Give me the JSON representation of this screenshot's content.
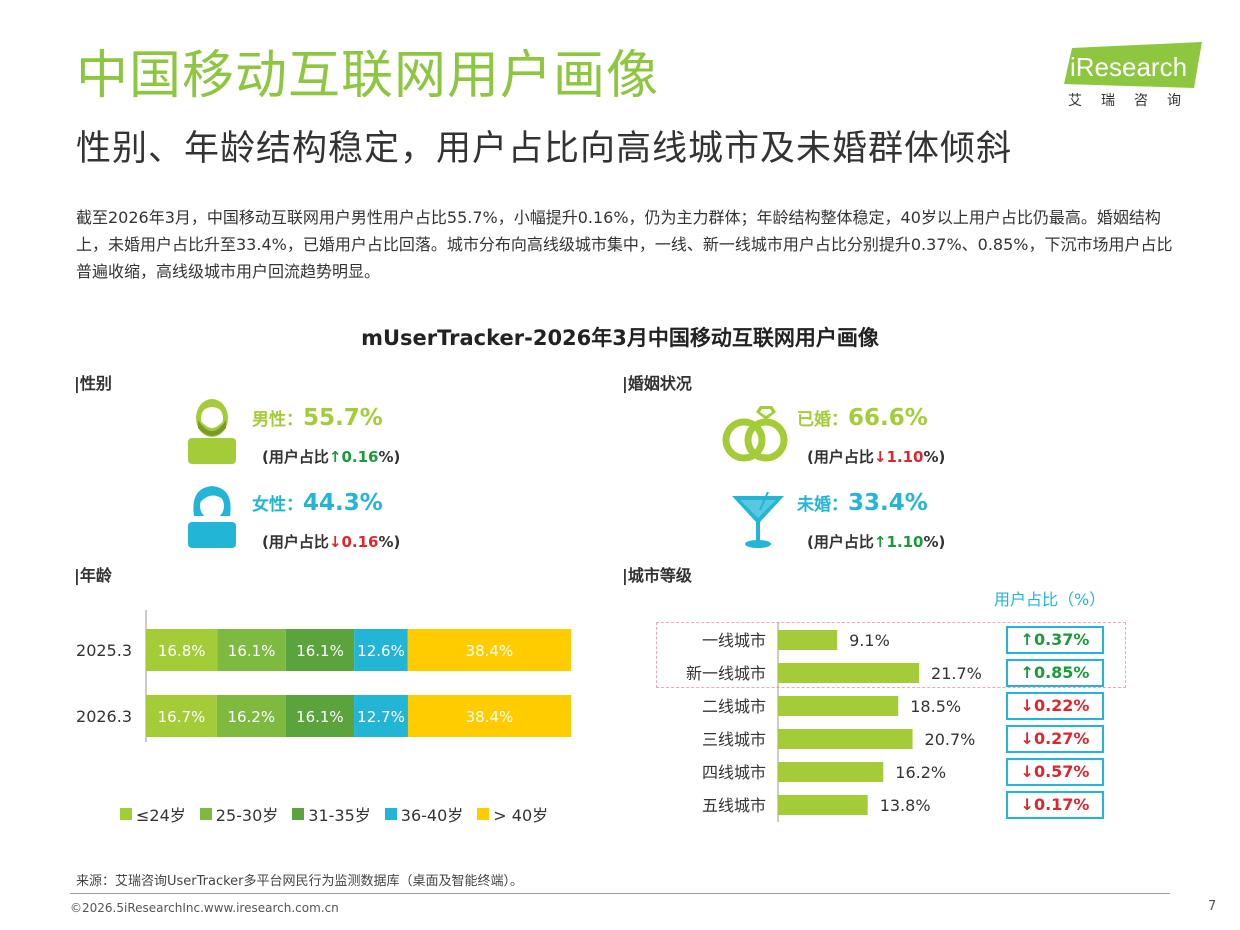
{
  "header": {
    "title": "中国移动互联网用户画像",
    "subtitle": "性别、年龄结构稳定，用户占比向高线城市及未婚群体倾斜",
    "logo_text": "iResearch",
    "logo_sub": "艾瑞咨询"
  },
  "intro": "截至2026年3月，中国移动互联网用户男性用户占比55.7%，小幅提升0.16%，仍为主力群体；年龄结构整体稳定，40岁以上用户占比仍最高。婚姻结构上，未婚用户占比升至33.4%，已婚用户占比回落。城市分布向高线级城市集中，一线、新一线城市用户占比分别提升0.37%、0.85%，下沉市场用户占比普遍收缩，高线级城市用户回流趋势明显。",
  "chart_title": "mUserTracker-2026年3月中国移动互联网用户画像",
  "sections": {
    "gender": "|性别",
    "marital": "|婚姻状况",
    "age": "|年龄",
    "city": "|城市等级"
  },
  "gender": {
    "male": {
      "label": "男性：",
      "value": "55.7%",
      "note_pre": "(用户占比",
      "arrow": "↑",
      "change": "0.16",
      "note_post": "%)"
    },
    "female": {
      "label": "女性：",
      "value": "44.3%",
      "note_pre": "(用户占比",
      "arrow": "↓",
      "change": "0.16",
      "note_post": "%)"
    }
  },
  "marital": {
    "married": {
      "label": "已婚：",
      "value": "66.6%",
      "note_pre": "(用户占比",
      "arrow": "↓",
      "change": "1.10",
      "note_post": "%)"
    },
    "single": {
      "label": "未婚：",
      "value": "33.4%",
      "note_pre": "(用户占比",
      "arrow": "↑",
      "change": "1.10",
      "note_post": "%)"
    }
  },
  "colors": {
    "green_main": "#8dc63f",
    "lime": "#a4cc38",
    "mid_green": "#7dba3f",
    "dark_green": "#5aa33d",
    "cyan": "#22b5d6",
    "yellow": "#ffcc00",
    "up": "#1a9b3a",
    "down": "#e0262c"
  },
  "chart_data": [
    {
      "type": "bar",
      "orientation": "horizontal-stacked",
      "categories": [
        "2025.3",
        "2026.3"
      ],
      "series": [
        {
          "name": "≤24岁",
          "values": [
            16.8,
            16.7
          ],
          "labels": [
            "16.8%",
            "16.7%"
          ],
          "color": "#a4cc38"
        },
        {
          "name": "25-30岁",
          "values": [
            16.1,
            16.2
          ],
          "labels": [
            "16.1%",
            "16.2%"
          ],
          "color": "#7dba3f"
        },
        {
          "name": "31-35岁",
          "values": [
            16.1,
            16.1
          ],
          "labels": [
            "16.1%",
            "16.1%"
          ],
          "color": "#5aa33d"
        },
        {
          "name": "36-40岁",
          "values": [
            12.6,
            12.7
          ],
          "labels": [
            "12.6%",
            "12.7%"
          ],
          "color": "#22b5d6"
        },
        {
          "name": "> 40岁",
          "values": [
            38.4,
            38.4
          ],
          "labels": [
            "38.4%",
            "38.4%"
          ],
          "color": "#ffcc00"
        }
      ],
      "legend": "bottom"
    },
    {
      "type": "bar",
      "orientation": "horizontal",
      "header": "用户占比（%）",
      "categories": [
        "一线城市",
        "新一线城市",
        "二线城市",
        "三线城市",
        "四线城市",
        "五线城市"
      ],
      "values": [
        9.1,
        21.7,
        18.5,
        20.7,
        16.2,
        13.8
      ],
      "labels": [
        "9.1%",
        "21.7%",
        "18.5%",
        "20.7%",
        "16.2%",
        "13.8%"
      ],
      "changes": [
        {
          "arrow": "↑",
          "value": "0.37%",
          "dir": "up"
        },
        {
          "arrow": "↑",
          "value": "0.85%",
          "dir": "up"
        },
        {
          "arrow": "↓",
          "value": "0.22%",
          "dir": "down"
        },
        {
          "arrow": "↓",
          "value": "0.27%",
          "dir": "down"
        },
        {
          "arrow": "↓",
          "value": "0.57%",
          "dir": "down"
        },
        {
          "arrow": "↓",
          "value": "0.17%",
          "dir": "down"
        }
      ],
      "color": "#a4cc38"
    }
  ],
  "footer": {
    "source": "来源：艾瑞咨询UserTracker多平台网民行为监测数据库（桌面及智能终端）。",
    "copyright": "©2026.5iResearchInc.www.iresearch.com.cn",
    "page": "7"
  }
}
